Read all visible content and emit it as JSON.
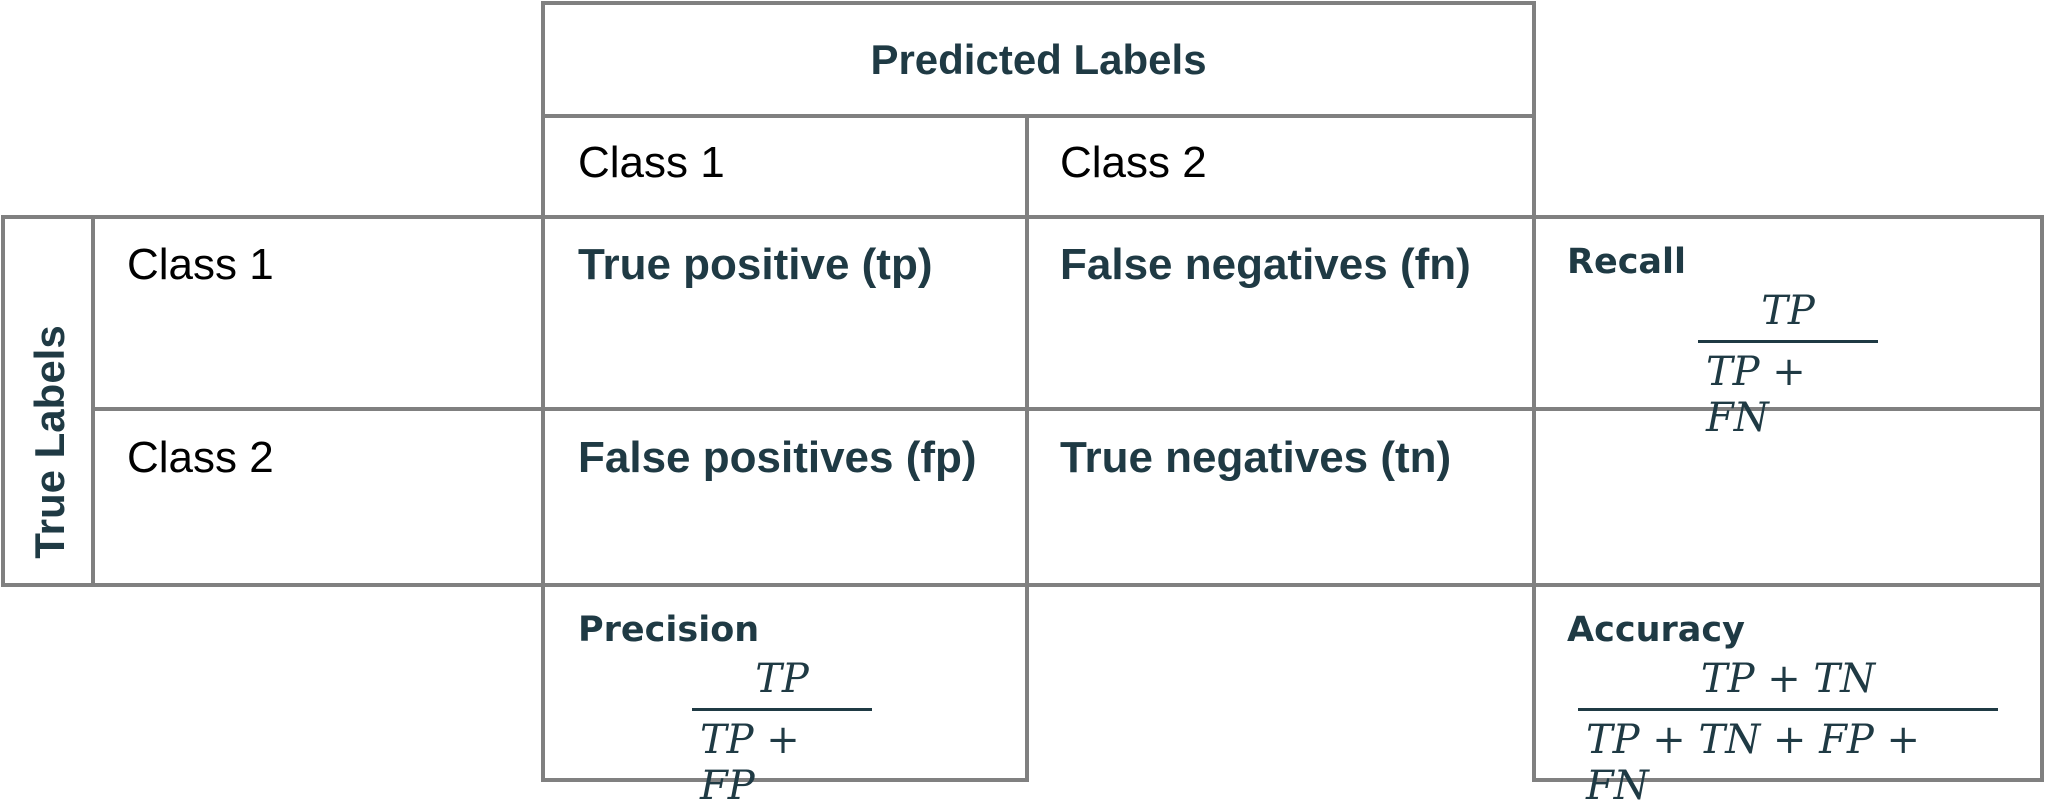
{
  "header": {
    "predicted": "Predicted Labels",
    "true_axis": "True Labels"
  },
  "columns": {
    "class1": "Class 1",
    "class2": "Class 2"
  },
  "rows": {
    "class1": "Class 1",
    "class2": "Class 2"
  },
  "cells": {
    "tp": "True positive (tp)",
    "fn": "False negatives (fn)",
    "fp": "False positives (fp)",
    "tn": "True negatives (tn)"
  },
  "metrics": {
    "recall": {
      "label": "Recall",
      "numerator": "TP",
      "denominator": "TP + FN"
    },
    "precision": {
      "label": "Precision",
      "numerator": "TP",
      "denominator": "TP + FP"
    },
    "accuracy": {
      "label": "Accuracy",
      "numerator": "TP + TN",
      "denominator": "TP + TN + FP + FN"
    }
  },
  "colors": {
    "grid": "#808080",
    "text_dark": "#1f3a44",
    "text_plain": "#000000"
  }
}
